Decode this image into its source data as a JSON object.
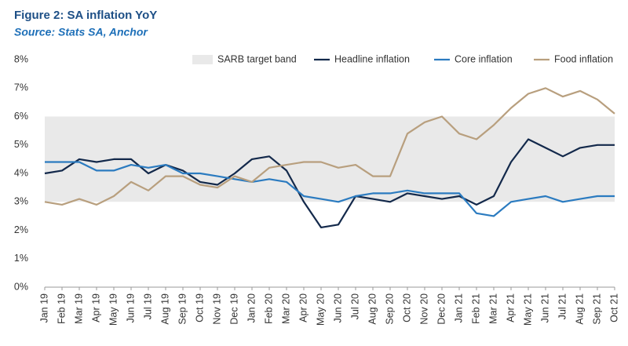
{
  "chart_data": {
    "type": "line",
    "title": "Figure 2: SA inflation YoY",
    "subtitle": "Source: Stats SA, Anchor",
    "categories": [
      "Jan 19",
      "Feb 19",
      "Mar 19",
      "Apr 19",
      "May 19",
      "Jun 19",
      "Jul 19",
      "Aug 19",
      "Sep 19",
      "Oct 19",
      "Nov 19",
      "Dec 19",
      "Jan 20",
      "Feb 20",
      "Mar 20",
      "Apr 20",
      "May 20",
      "Jun 20",
      "Jul 20",
      "Aug 20",
      "Sep 20",
      "Oct 20",
      "Nov 20",
      "Dec 20",
      "Jan 21",
      "Feb 21",
      "Mar 21",
      "Apr 21",
      "May 21",
      "Jun 21",
      "Jul 21",
      "Aug 21",
      "Sep 21",
      "Oct 21"
    ],
    "band": {
      "name": "SARB target band",
      "low": 3,
      "high": 6,
      "color": "#e9e9e9"
    },
    "series": [
      {
        "name": "Headline inflation",
        "color": "#13294b",
        "values": [
          4.0,
          4.1,
          4.5,
          4.4,
          4.5,
          4.5,
          4.0,
          4.3,
          4.1,
          3.7,
          3.6,
          4.0,
          4.5,
          4.6,
          4.1,
          3.0,
          2.1,
          2.2,
          3.2,
          3.1,
          3.0,
          3.3,
          3.2,
          3.1,
          3.2,
          2.9,
          3.2,
          4.4,
          5.2,
          4.9,
          4.6,
          4.9,
          5.0,
          5.0
        ]
      },
      {
        "name": "Core inflation",
        "color": "#2b7bc0",
        "values": [
          4.4,
          4.4,
          4.4,
          4.1,
          4.1,
          4.3,
          4.2,
          4.3,
          4.0,
          4.0,
          3.9,
          3.8,
          3.7,
          3.8,
          3.7,
          3.2,
          3.1,
          3.0,
          3.2,
          3.3,
          3.3,
          3.4,
          3.3,
          3.3,
          3.3,
          2.6,
          2.5,
          3.0,
          3.1,
          3.2,
          3.0,
          3.1,
          3.2,
          3.2
        ]
      },
      {
        "name": "Food inflation",
        "color": "#b89f7e",
        "values": [
          3.0,
          2.9,
          3.1,
          2.9,
          3.2,
          3.7,
          3.4,
          3.9,
          3.9,
          3.6,
          3.5,
          3.9,
          3.7,
          4.2,
          4.3,
          4.4,
          4.4,
          4.2,
          4.3,
          3.9,
          3.9,
          5.4,
          5.8,
          6.0,
          5.4,
          5.2,
          5.7,
          6.3,
          6.8,
          7.0,
          6.7,
          6.9,
          6.6,
          6.1
        ]
      }
    ],
    "ylim": [
      0,
      8
    ],
    "yticks": [
      {
        "value": 0,
        "label": "0%"
      },
      {
        "value": 1,
        "label": "1%"
      },
      {
        "value": 2,
        "label": "2%"
      },
      {
        "value": 3,
        "label": "3%"
      },
      {
        "value": 4,
        "label": "4%"
      },
      {
        "value": 5,
        "label": "5%"
      },
      {
        "value": 6,
        "label": "6%"
      },
      {
        "value": 7,
        "label": "7%"
      },
      {
        "value": 8,
        "label": "8%"
      }
    ]
  }
}
